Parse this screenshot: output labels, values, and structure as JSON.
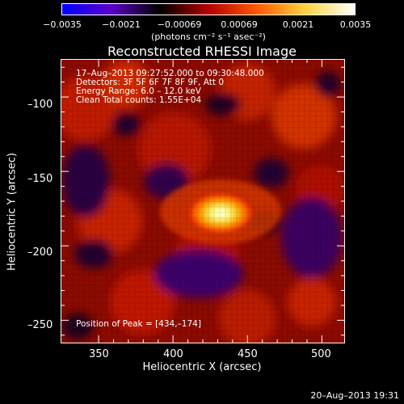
{
  "colorbar": {
    "ticks": [
      "−0.0035",
      "−0.0021",
      "−0.00069",
      "0.00069",
      "0.0021",
      "0.0035"
    ],
    "units": "(photons cm⁻² s⁻¹ asec⁻²)",
    "colors": [
      "#0000ff",
      "#5a00c8",
      "#000000",
      "#b40000",
      "#ff5a00",
      "#ffd240",
      "#ffffff"
    ]
  },
  "title": "Reconstructed RHESSI Image",
  "annotations": {
    "time": "17–Aug–2013 09:27:52.000 to 09:30:48.000",
    "detectors": "Detectors: 3F 5F 6F 7F 8F 9F, Att 0",
    "energy": "Energy Range: 6.0 – 12.0 keV",
    "clean": "Clean    Total counts: 1.55E+04",
    "peak": "Position of Peak = [434,–174]"
  },
  "xaxis": {
    "label": "Heliocentric X (arcsec)",
    "ticks": [
      "350",
      "400",
      "450",
      "500"
    ],
    "tick_values": [
      350,
      400,
      450,
      500
    ],
    "range": [
      325,
      515
    ]
  },
  "yaxis": {
    "label": "Heliocentric Y (arcsec)",
    "ticks": [
      "–100",
      "–150",
      "–200",
      "–250"
    ],
    "tick_values": [
      -100,
      -150,
      -200,
      -250
    ],
    "range": [
      -265,
      -75
    ]
  },
  "footer": "20–Aug–2013 19:31"
}
